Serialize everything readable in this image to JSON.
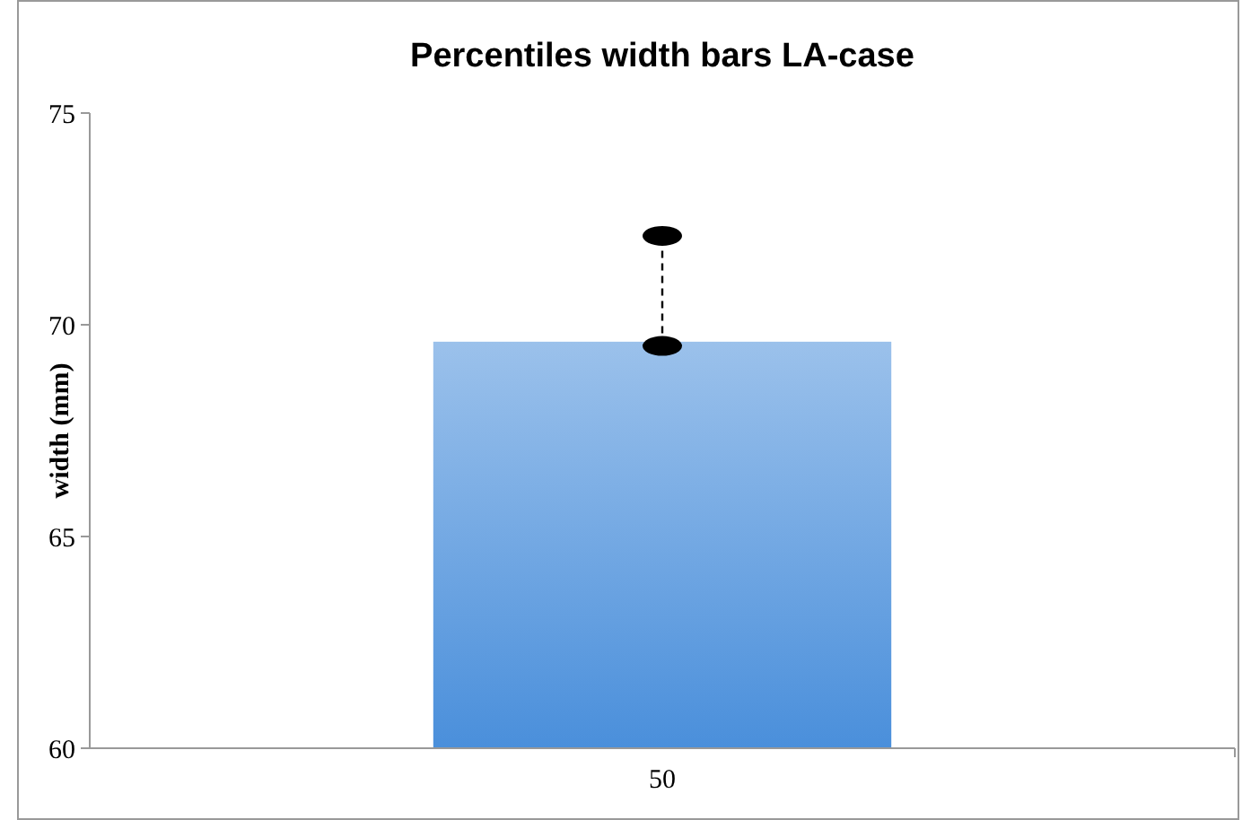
{
  "chart_data": {
    "type": "bar",
    "title": "Percentiles width bars LA-case",
    "ylabel": "width (mm)",
    "categories": [
      "50"
    ],
    "series": [
      {
        "color": "#4a8fdb",
        "values": [
          69.6
        ]
      },
      {
        "type": "line",
        "x": [
          "50",
          "50"
        ],
        "color": "#000000",
        "values": [
          69.5,
          72.1
        ],
        "marker": "circle",
        "line_style": "dashed"
      }
    ],
    "ylim": [
      60,
      75
    ],
    "yticks": [
      60,
      65,
      70,
      75
    ],
    "grid": false
  }
}
